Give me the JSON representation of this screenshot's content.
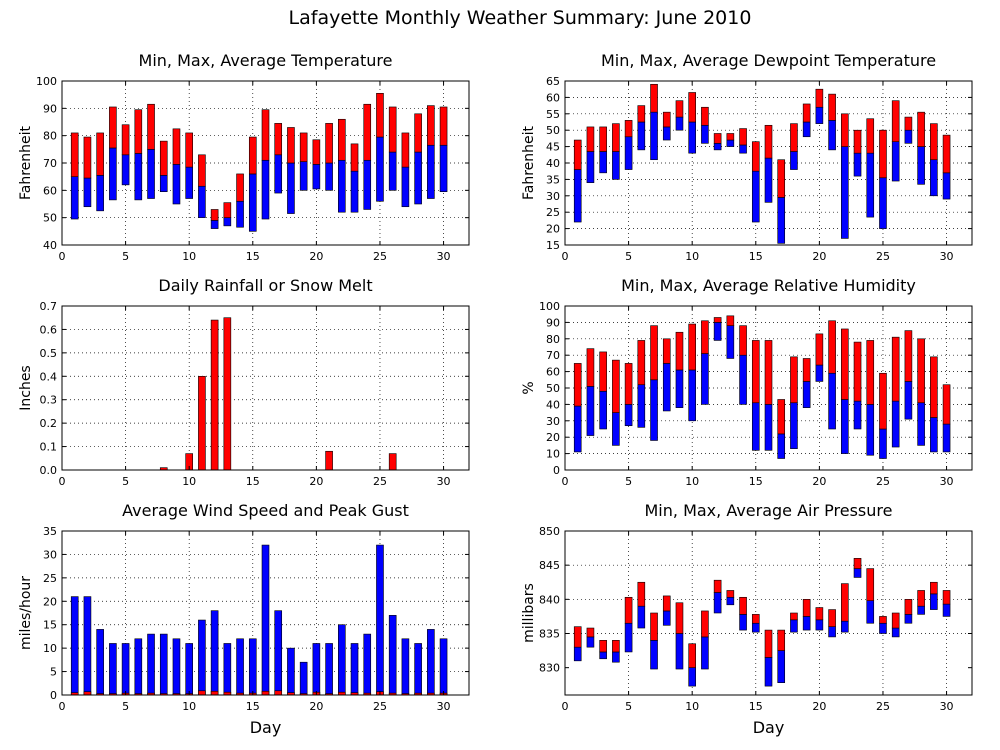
{
  "title": "Lafayette Monthly Weather Summary: June 2010",
  "colors": {
    "upper": "#ff0000",
    "lower": "#0000ff",
    "outline": "#000000"
  },
  "chart_data": [
    {
      "id": "temperature",
      "type": "floating-bar",
      "title": "Min, Max, Average Temperature",
      "xlabel": "",
      "ylabel": "Fahrenheit",
      "xlim": [
        0,
        32
      ],
      "xticks": [
        0,
        5,
        10,
        15,
        20,
        25,
        30
      ],
      "ylim": [
        40,
        100
      ],
      "yticks": [
        40,
        50,
        60,
        70,
        80,
        90,
        100
      ],
      "grid": true,
      "x": [
        1,
        2,
        3,
        4,
        5,
        6,
        7,
        8,
        9,
        10,
        11,
        12,
        13,
        14,
        15,
        16,
        17,
        18,
        19,
        20,
        21,
        22,
        23,
        24,
        25,
        26,
        27,
        28,
        29,
        30
      ],
      "min": [
        49.5,
        54,
        52.5,
        56.5,
        62,
        56.5,
        57,
        59.5,
        55,
        57,
        50,
        46,
        47,
        46.5,
        45,
        49.5,
        59,
        51.5,
        60,
        60.5,
        60,
        52,
        52,
        53,
        56,
        60,
        54,
        55,
        57,
        59.5
      ],
      "avg": [
        65,
        64.5,
        65.5,
        75.5,
        73,
        73.5,
        75,
        65.5,
        69.5,
        68.5,
        61.5,
        49,
        50,
        56,
        66,
        71,
        73,
        70,
        70.5,
        69.5,
        70,
        71,
        67,
        71,
        79.5,
        74,
        68.5,
        74,
        76.5,
        76.5
      ],
      "max": [
        81,
        79.5,
        81,
        90.5,
        84,
        89.5,
        91.5,
        78,
        82.5,
        81,
        73,
        53,
        55.5,
        66,
        79.5,
        89.5,
        84.5,
        83,
        81,
        78.5,
        84.5,
        86,
        77,
        91.5,
        95.5,
        90.5,
        81,
        88,
        91,
        90.5
      ]
    },
    {
      "id": "dewpoint",
      "type": "floating-bar",
      "title": "Min, Max, Average Dewpoint Temperature",
      "xlabel": "",
      "ylabel": "Fahrenheit",
      "xlim": [
        0,
        32
      ],
      "xticks": [
        0,
        5,
        10,
        15,
        20,
        25,
        30
      ],
      "ylim": [
        15,
        65
      ],
      "yticks": [
        15,
        20,
        25,
        30,
        35,
        40,
        45,
        50,
        55,
        60,
        65
      ],
      "grid": true,
      "x": [
        1,
        2,
        3,
        4,
        5,
        6,
        7,
        8,
        9,
        10,
        11,
        12,
        13,
        14,
        15,
        16,
        17,
        18,
        19,
        20,
        21,
        22,
        23,
        24,
        25,
        26,
        27,
        28,
        29,
        30
      ],
      "min": [
        22,
        34,
        37,
        35,
        38,
        44,
        41,
        47,
        50,
        43,
        46,
        44,
        45,
        43,
        22,
        28,
        15.5,
        38,
        48,
        52,
        44,
        17,
        36,
        23.5,
        20,
        34.5,
        46,
        33.5,
        30,
        29
      ],
      "avg": [
        38,
        43.5,
        43.5,
        43.5,
        48,
        52.5,
        55.5,
        51,
        54,
        52.5,
        51.5,
        46,
        47,
        45.5,
        37.5,
        41.5,
        29.5,
        43.5,
        52.5,
        57,
        53,
        45,
        43,
        43,
        35.5,
        46.5,
        50,
        45,
        41,
        37
      ],
      "max": [
        47,
        51,
        51,
        52,
        53,
        57.5,
        64,
        55.5,
        59,
        61.5,
        57,
        49,
        49,
        50.5,
        46.5,
        51.5,
        41,
        52,
        58,
        62.5,
        61,
        55,
        50,
        53.5,
        50,
        59,
        54,
        55.5,
        52,
        48.5
      ]
    },
    {
      "id": "rainfall",
      "type": "bar",
      "title": "Daily Rainfall or Snow Melt",
      "xlabel": "",
      "ylabel": "Inches",
      "xlim": [
        0,
        32
      ],
      "xticks": [
        0,
        5,
        10,
        15,
        20,
        25,
        30
      ],
      "ylim": [
        0,
        0.7
      ],
      "yticks": [
        0.0,
        0.1,
        0.2,
        0.3,
        0.4,
        0.5,
        0.6,
        0.7
      ],
      "yticklabels": [
        "0.0",
        "0.1",
        "0.2",
        "0.3",
        "0.4",
        "0.5",
        "0.6",
        "0.7"
      ],
      "grid": true,
      "x": [
        1,
        2,
        3,
        4,
        5,
        6,
        7,
        8,
        9,
        10,
        11,
        12,
        13,
        14,
        15,
        16,
        17,
        18,
        19,
        20,
        21,
        22,
        23,
        24,
        25,
        26,
        27,
        28,
        29,
        30
      ],
      "values": [
        0,
        0,
        0,
        0,
        0,
        0,
        0,
        0.01,
        0,
        0.07,
        0.4,
        0.64,
        0.65,
        0,
        0,
        0,
        0,
        0,
        0,
        0,
        0.08,
        0,
        0,
        0,
        0,
        0.07,
        0,
        0,
        0,
        0
      ]
    },
    {
      "id": "humidity",
      "type": "floating-bar",
      "title": "Min, Max, Average Relative Humidity",
      "xlabel": "",
      "ylabel": "%",
      "xlim": [
        0,
        32
      ],
      "xticks": [
        0,
        5,
        10,
        15,
        20,
        25,
        30
      ],
      "ylim": [
        0,
        100
      ],
      "yticks": [
        0,
        10,
        20,
        30,
        40,
        50,
        60,
        70,
        80,
        90,
        100
      ],
      "grid": true,
      "x": [
        1,
        2,
        3,
        4,
        5,
        6,
        7,
        8,
        9,
        10,
        11,
        12,
        13,
        14,
        15,
        16,
        17,
        18,
        19,
        20,
        21,
        22,
        23,
        24,
        25,
        26,
        27,
        28,
        29,
        30
      ],
      "min": [
        11,
        21,
        25,
        15,
        27,
        26,
        18,
        36,
        38,
        30,
        40,
        79,
        68,
        40,
        12,
        12,
        7,
        13,
        38,
        54,
        25,
        10,
        25,
        9,
        7,
        14,
        31,
        15,
        11,
        11
      ],
      "avg": [
        39,
        51,
        48,
        35,
        40,
        52,
        55,
        65,
        61,
        61,
        71,
        90,
        88,
        70,
        41,
        40,
        22,
        41,
        54,
        64,
        59,
        43,
        42,
        40,
        25,
        42,
        54,
        41,
        32,
        28
      ],
      "max": [
        65,
        74,
        72,
        67,
        65,
        79,
        88,
        80,
        84,
        89,
        91,
        93,
        94,
        88,
        79,
        79,
        43,
        69,
        68,
        83,
        91,
        86,
        78,
        79,
        59,
        81,
        85,
        80,
        69,
        52
      ]
    },
    {
      "id": "wind",
      "type": "bar",
      "title": "Average Wind Speed and Peak Gust",
      "xlabel": "Day",
      "ylabel": "miles/hour",
      "xlim": [
        0,
        32
      ],
      "xticks": [
        0,
        5,
        10,
        15,
        20,
        25,
        30
      ],
      "ylim": [
        0,
        35
      ],
      "yticks": [
        0,
        5,
        10,
        15,
        20,
        25,
        30,
        35
      ],
      "grid": true,
      "x": [
        1,
        2,
        3,
        4,
        5,
        6,
        7,
        8,
        9,
        10,
        11,
        12,
        13,
        14,
        15,
        16,
        17,
        18,
        19,
        20,
        21,
        22,
        23,
        24,
        25,
        26,
        27,
        28,
        29,
        30
      ],
      "gust": [
        21,
        21,
        14,
        11,
        11,
        12,
        13,
        13,
        12,
        11,
        16,
        18,
        11,
        12,
        12,
        32,
        18,
        10,
        7,
        11,
        11,
        15,
        11,
        13,
        32,
        17,
        12,
        11,
        14,
        12
      ],
      "avg_speed": [
        0.5,
        0.7,
        0.3,
        0.3,
        0.4,
        0.3,
        0.4,
        0.3,
        0.3,
        0.3,
        0.9,
        0.8,
        0.6,
        0.4,
        0.4,
        0.8,
        0.9,
        0.5,
        0.3,
        0.6,
        0.3,
        0.6,
        0.5,
        0.4,
        0.7,
        0.4,
        0.3,
        0.4,
        0.4,
        0.4
      ]
    },
    {
      "id": "pressure",
      "type": "floating-bar",
      "title": "Min, Max, Average Air Pressure",
      "xlabel": "Day",
      "ylabel": "millibars",
      "xlim": [
        0,
        32
      ],
      "xticks": [
        0,
        5,
        10,
        15,
        20,
        25,
        30
      ],
      "ylim": [
        826,
        850
      ],
      "yticks": [
        830,
        835,
        840,
        845,
        850
      ],
      "grid": true,
      "x": [
        1,
        2,
        3,
        4,
        5,
        6,
        7,
        8,
        9,
        10,
        11,
        12,
        13,
        14,
        15,
        16,
        17,
        18,
        19,
        20,
        21,
        22,
        23,
        24,
        25,
        26,
        27,
        28,
        29,
        30
      ],
      "min": [
        831,
        833,
        831.3,
        830.8,
        832.3,
        835.8,
        829.8,
        836.2,
        829.8,
        827.3,
        829.8,
        838,
        839.2,
        835.5,
        835.2,
        827.3,
        827.8,
        835.2,
        835.5,
        835.5,
        834.5,
        835.2,
        843.2,
        836.5,
        835,
        834.5,
        836.5,
        837.8,
        838.5,
        837.5
      ],
      "avg": [
        833,
        834.5,
        832.3,
        832.3,
        836.5,
        839,
        834,
        838.3,
        835,
        830,
        834.5,
        841,
        840.3,
        837.8,
        836.5,
        831.5,
        832.5,
        837,
        837.5,
        837,
        836,
        836.8,
        844.5,
        839.8,
        836.5,
        835.8,
        837.8,
        839,
        840.8,
        839.3
      ],
      "max": [
        836,
        835.8,
        834,
        834,
        840.3,
        842.5,
        838,
        840.5,
        839.5,
        833.5,
        838.3,
        842.8,
        841.3,
        840.3,
        837.8,
        835.5,
        835.5,
        838,
        840,
        838.8,
        838.5,
        842.3,
        846,
        844.5,
        837.5,
        838,
        840,
        841.3,
        842.5,
        841.3
      ]
    }
  ]
}
